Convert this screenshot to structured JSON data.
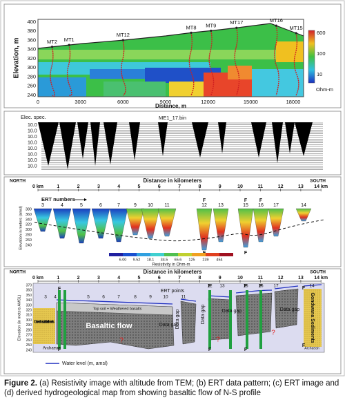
{
  "panel_a": {
    "y_label": "Elevation, m",
    "x_label": "Distance, m",
    "y_ticks": [
      "400",
      "380",
      "360",
      "340",
      "320",
      "300",
      "280",
      "260",
      "240"
    ],
    "x_ticks": [
      "0",
      "3000",
      "6000",
      "9000",
      "12000",
      "15000",
      "18000"
    ],
    "stations": [
      "MT2",
      "MT1",
      "MT12",
      "MT8",
      "MT9",
      "MT17",
      "MT16",
      "MT15"
    ],
    "colorbar": [
      "600",
      "100",
      "10"
    ],
    "colorbar_unit": "Ohm-m"
  },
  "panel_b": {
    "left_label": "Elec. spec.",
    "file": "ME1_17.bin",
    "rows": [
      "10.0",
      "10.0",
      "10.0",
      "10.0",
      "10.0",
      "10.0",
      "10.0",
      "10.0"
    ]
  },
  "panel_c": {
    "north": "NORTH",
    "south": "SOUTH",
    "distance": "Distance in kilometers",
    "km_ticks": [
      "0 km",
      "1",
      "2",
      "3",
      "4",
      "5",
      "6",
      "7",
      "8",
      "9",
      "10",
      "11",
      "12",
      "13",
      "14 km"
    ],
    "ert_title": "ERT numbers",
    "ert": [
      "3",
      "4",
      "5",
      "6",
      "7",
      "9",
      "10",
      "11",
      "12",
      "13",
      "15",
      "16",
      "17",
      "14"
    ],
    "y_label": "Elevation in meters (amsl)",
    "y_ticks": [
      "380",
      "360",
      "340",
      "320",
      "300",
      "280",
      "260",
      "240"
    ],
    "fault": "F",
    "colorbar": [
      "6.00",
      "9.52",
      "18.1",
      "34.5",
      "65.6",
      "125",
      "239",
      "454"
    ],
    "colorbar_title": "Resistivity in Ohm-m"
  },
  "panel_d": {
    "north": "NORTH",
    "south": "SOUTH",
    "distance": "Distance in kilometers",
    "km_ticks": [
      "0 km",
      "1",
      "2",
      "3",
      "4",
      "5",
      "6",
      "7",
      "8",
      "9",
      "10",
      "11",
      "12",
      "13",
      "14 km"
    ],
    "ert_title": "ERT points",
    "ert": [
      "3",
      "4",
      "5",
      "6",
      "7",
      "8",
      "9",
      "10",
      "11",
      "12",
      "13",
      "15",
      "16",
      "17",
      "14"
    ],
    "y_label": "Elevation (in meters AMSL)",
    "y_ticks": [
      "370",
      "360",
      "350",
      "340",
      "330",
      "320",
      "310",
      "300",
      "290",
      "280",
      "270",
      "260",
      "250",
      "240"
    ],
    "top_soil": "Top soil + Weathered basalts",
    "gondwana": "Gondwana Sediments",
    "basalt": "Basaltic flow",
    "data_gap": "Data gap",
    "archaean": "Archaean",
    "fault": "F",
    "unknown": "?",
    "legend": "Water level (m, amsl)"
  },
  "caption": {
    "label": "Figure 2.",
    "text": "(a) Resistivity image with altitude from TEM; (b) ERT data pattern; (c) ERT image and (d) derived hydrogeological map from showing basaltic flow of N-S profile"
  }
}
